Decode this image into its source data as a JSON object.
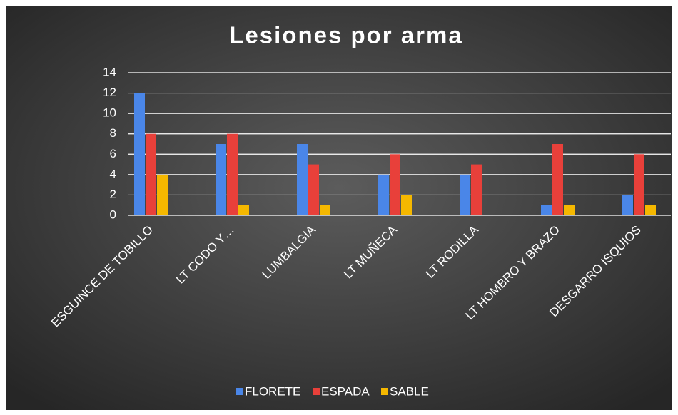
{
  "chart_data": {
    "type": "bar",
    "title": "Lesiones por arma",
    "categories": [
      "ESGUINCE DE TOBILLO",
      "LT CODO Y…",
      "LUMBALGIA",
      "LT MUÑECA",
      "LT RODILLA",
      "LT HOMBRO Y BRAZO",
      "DESGARRO ISQUIOS"
    ],
    "series": [
      {
        "name": "FLORETE",
        "color": "#4a86e8",
        "values": [
          12,
          7,
          7,
          4,
          4,
          1,
          2
        ]
      },
      {
        "name": "ESPADA",
        "color": "#e8403a",
        "values": [
          8,
          8,
          5,
          6,
          5,
          7,
          6
        ]
      },
      {
        "name": "SABLE",
        "color": "#f5b800",
        "values": [
          4,
          1,
          1,
          2,
          0,
          1,
          1
        ]
      }
    ],
    "ylim": [
      0,
      14
    ],
    "yticks": [
      0,
      2,
      4,
      6,
      8,
      10,
      12,
      14
    ],
    "grid": true,
    "legend": "bottom"
  }
}
